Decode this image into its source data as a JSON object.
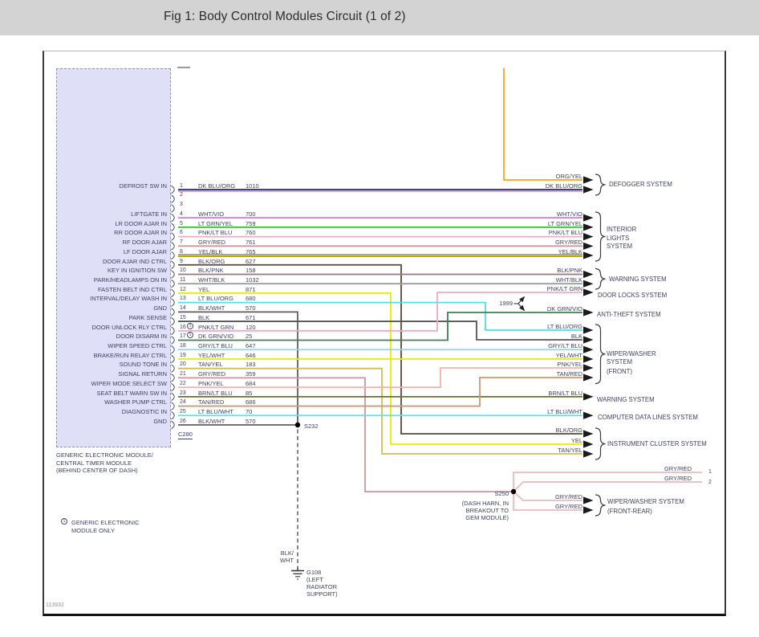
{
  "title": "Fig 1: Body Control Modules Circuit (1 of 2)",
  "figure_id": "113932",
  "module": {
    "name_lines": [
      "GENERIC ELECTRONIC MODULE/",
      "CENTRAL TIMER MODULE",
      "(BEHIND CENTER OF DASH)"
    ],
    "connector": "C280",
    "footnote": {
      "marker": "1",
      "lines": [
        "GENERIC ELECTRONIC",
        "MODULE ONLY"
      ]
    }
  },
  "pins": [
    {
      "num": "1",
      "label": "DEFROST SW IN",
      "color": "DK BLU/ORG",
      "circuit": "1010"
    },
    {
      "num": "2",
      "label": "",
      "color": "",
      "circuit": ""
    },
    {
      "num": "3",
      "label": "",
      "color": "",
      "circuit": ""
    },
    {
      "num": "4",
      "label": "LIFTGATE IN",
      "color": "WHT/VIO",
      "circuit": "700"
    },
    {
      "num": "5",
      "label": "LR DOOR AJAR IN",
      "color": "LT GRN/YEL",
      "circuit": "759"
    },
    {
      "num": "6",
      "label": "RR DOOR AJAR IN",
      "color": "PNK/LT BLU",
      "circuit": "760"
    },
    {
      "num": "7",
      "label": "RF DOOR AJAR",
      "color": "GRY/RED",
      "circuit": "761"
    },
    {
      "num": "8",
      "label": "LF DOOR AJAR",
      "color": "YEL/BLK",
      "circuit": "765"
    },
    {
      "num": "9",
      "label": "DOOR AJAR IND CTRL",
      "color": "BLK/ORG",
      "circuit": "627"
    },
    {
      "num": "10",
      "label": "KEY IN IGNITION SW",
      "color": "BLK/PNK",
      "circuit": "158"
    },
    {
      "num": "11",
      "label": "PARK/HEADLAMPS ON IN",
      "color": "WHT/BLK",
      "circuit": "1032"
    },
    {
      "num": "12",
      "label": "FASTEN BELT IND CTRL",
      "color": "YEL",
      "circuit": "871"
    },
    {
      "num": "13",
      "label": "INTERVAL/DELAY WASH IN",
      "color": "LT BLU/ORG",
      "circuit": "680"
    },
    {
      "num": "14",
      "label": "GND",
      "color": "BLK/WHT",
      "circuit": "570"
    },
    {
      "num": "15",
      "label": "PARK SENSE",
      "color": "BLK",
      "circuit": "671"
    },
    {
      "num": "16",
      "label": "DOOR UNLOCK RLY CTRL",
      "color": "PNK/LT GRN",
      "circuit": "120",
      "note": "1"
    },
    {
      "num": "17",
      "label": "DOOR DISARM IN",
      "color": "DK GRN/VIO",
      "circuit": "25",
      "note": "1"
    },
    {
      "num": "18",
      "label": "WIPER SPEED CTRL",
      "color": "GRY/LT BLU",
      "circuit": "647"
    },
    {
      "num": "19",
      "label": "BRAKE/RUN RELAY CTRL",
      "color": "YEL/WHT",
      "circuit": "646"
    },
    {
      "num": "20",
      "label": "SOUND TONE IN",
      "color": "TAN/YEL",
      "circuit": "183"
    },
    {
      "num": "21",
      "label": "SIGNAL RETURN",
      "color": "GRY/RED",
      "circuit": "359"
    },
    {
      "num": "22",
      "label": "WIPER MODE SELECT SW",
      "color": "PNK/YEL",
      "circuit": "684"
    },
    {
      "num": "23",
      "label": "SEAT BELT WARN SW IN",
      "color": "BRN/LT BLU",
      "circuit": "85"
    },
    {
      "num": "24",
      "label": "WASHER PUMP CTRL",
      "color": "TAN/RED",
      "circuit": "686"
    },
    {
      "num": "25",
      "label": "DIAGNOSTIC IN",
      "color": "LT BLU/WHT",
      "circuit": "70"
    },
    {
      "num": "26",
      "label": "GND",
      "color": "BLK/WHT",
      "circuit": "570"
    }
  ],
  "right_wire_labels": [
    "ORG/YEL",
    "DK BLU/ORG",
    "WHT/VIO",
    "LT GRN/YEL",
    "PNK/LT BLU",
    "GRY/RED",
    "YEL/BLK",
    "BLK/PNK",
    "WHT/BLK",
    "PNK/LT GRN",
    "DK GRN/VIO",
    "LT BLU/ORG",
    "BLK",
    "GRY/LT BLU",
    "YEL/WHT",
    "PNK/YEL",
    "TAN/RED",
    "BRN/LT BLU",
    "LT BLU/WHT",
    "BLK/ORG",
    "YEL",
    "TAN/YEL",
    "GRY/RED",
    "GRY/RED"
  ],
  "systems": [
    {
      "lines": [
        "DEFOGGER SYSTEM"
      ]
    },
    {
      "lines": [
        "INTERIOR",
        "LIGHTS",
        "SYSTEM"
      ]
    },
    {
      "lines": [
        "WARNING SYSTEM"
      ]
    },
    {
      "lines": [
        "DOOR LOCKS SYSTEM"
      ]
    },
    {
      "lines": [
        "ANTI-THEFT SYSTEM"
      ]
    },
    {
      "lines": [
        "WIPER/WASHER",
        "SYSTEM",
        "(FRONT)"
      ]
    },
    {
      "lines": [
        "WARNING SYSTEM"
      ]
    },
    {
      "lines": [
        "COMPUTER DATA LINES SYSTEM"
      ]
    },
    {
      "lines": [
        "INSTRUMENT CLUSTER SYSTEM"
      ]
    },
    {
      "lines": [
        "WIPER/WASHER SYSTEM",
        "(FRONT-REAR)"
      ]
    }
  ],
  "edge_wires": [
    {
      "label": "GRY/RED",
      "pin": "1"
    },
    {
      "label": "GRY/RED",
      "pin": "2"
    }
  ],
  "splices": {
    "s232": {
      "name": "S232"
    },
    "s250": {
      "name": "S250",
      "note_lines": [
        "(DASH HARN, IN",
        "BREAKOUT TO",
        "GEM MODULE)"
      ]
    }
  },
  "ground": {
    "name": "G108",
    "wire_lines": [
      "BLK/",
      "WHT"
    ],
    "location_lines": [
      "(LEFT",
      "RADIATOR",
      "SUPPORT)"
    ]
  },
  "year_note": "1999",
  "wire_colors": {
    "DK BLU/ORG": "#26267a",
    "DK BLU/ORG-stripe": "#b25454",
    "ORG/YEL": "#f4a428",
    "WHT/VIO": "#e070e0",
    "LT GRN/YEL": "#22cc22",
    "PNK/LT BLU": "#f3acba",
    "GRY/RED": "#cf939c",
    "GRY/RED-LIGHT": "#e7bcbc",
    "YEL/BLK": "#e3d600",
    "YEL/BLK-stripe": "#4d4d4d",
    "BLK/ORG": "#57493a",
    "BLK/PNK": "#98797b",
    "WHT/BLK": "#9c9c9c",
    "YEL": "#ebeb00",
    "LT BLU/ORG": "#54dede",
    "BLK/WHT": "#5e5e5e",
    "BLK": "#565656",
    "PNK/LT GRN": "#eeabc0",
    "DK GRN/VIO": "#3e8152",
    "GRY/LT BLU": "#8ed9dd",
    "YEL/WHT": "#e9e72e",
    "TAN/YEL": "#d2bf52",
    "PNK/YEL": "#f4b4a6",
    "BRN/LT BLU": "#6d7031",
    "TAN/RED": "#cd9a76",
    "LT BLU/WHT": "#5ee2e8"
  }
}
